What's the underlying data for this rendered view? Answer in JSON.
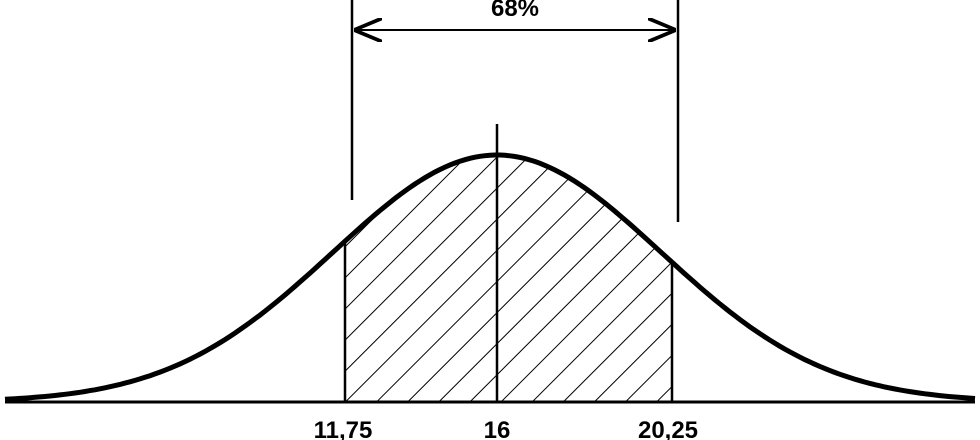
{
  "span_label": "68%",
  "axis_labels": [
    "11,75",
    "16",
    "20,25"
  ]
}
